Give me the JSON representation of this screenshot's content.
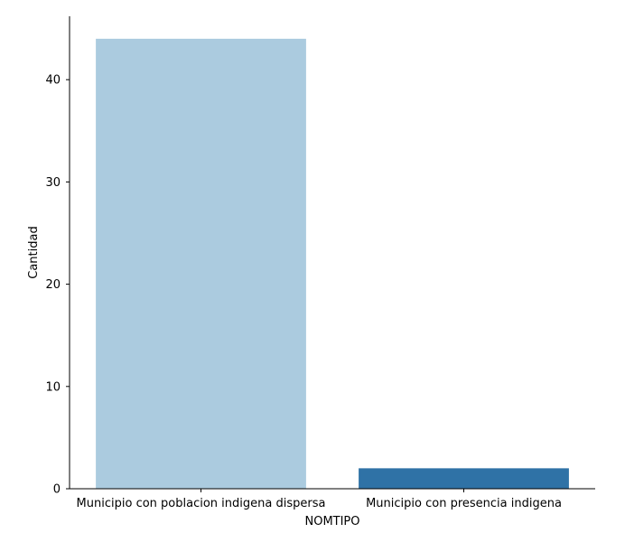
{
  "chart_data": {
    "type": "bar",
    "categories": [
      "Municipio con poblacion indigena dispersa",
      "Municipio con presencia indigena"
    ],
    "values": [
      44,
      2
    ],
    "colors": [
      "#abcbdf",
      "#2f72a6"
    ],
    "title": "",
    "xlabel": "NOMTIPO",
    "ylabel": "Cantidad",
    "ylim": [
      0,
      46.2
    ],
    "yticks": [
      0,
      10,
      20,
      30,
      40
    ],
    "grid": false,
    "legend": "none"
  }
}
